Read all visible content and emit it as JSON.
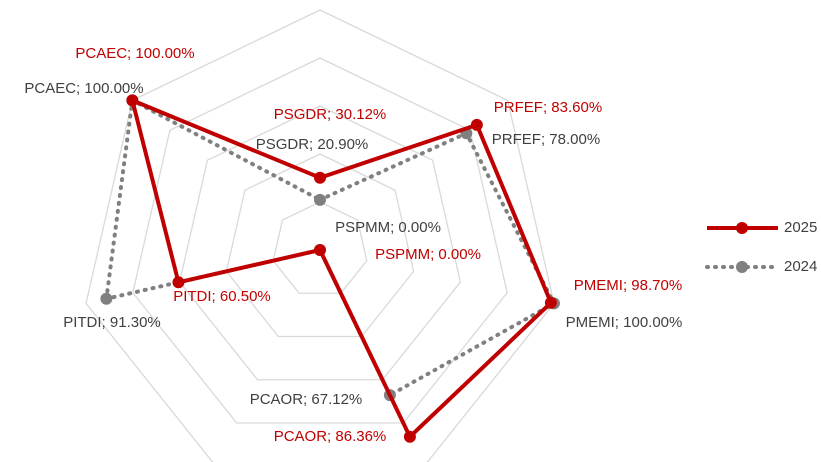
{
  "chart_data": {
    "type": "radar",
    "categories": [
      "PSGDR",
      "PRFEF",
      "PMEMI",
      "PCAOR",
      "PSPMM",
      "PITDI",
      "PCAEC"
    ],
    "ylim": [
      0,
      100
    ],
    "yticks": [
      0,
      20,
      40,
      60,
      80,
      100
    ],
    "grid": true,
    "legend": "right",
    "series": [
      {
        "name": "2025",
        "color": "#c00000",
        "style": "solid",
        "values": [
          30.12,
          83.6,
          98.7,
          86.36,
          0,
          60.5,
          100
        ],
        "value_labels": [
          "PSGDR; 30.12%",
          "PRFEF; 83.60%",
          "PMEMI; 98.70%",
          "PCAOR; 86.36%",
          "PSPMM; 0.00%",
          "PITDI; 60.50%",
          "PCAEC; 100.00%"
        ]
      },
      {
        "name": "2024",
        "color": "#808080",
        "style": "dotted",
        "values": [
          20.9,
          78,
          100,
          67.12,
          0,
          91.3,
          100
        ],
        "value_labels": [
          "PSGDR; 20.90%",
          "PRFEF; 78.00%",
          "PMEMI; 100.00%",
          "PCAOR; 67.12%",
          "PSPMM; 0.00%",
          "PITDI; 91.30%",
          "PCAEC; 100.00%"
        ]
      }
    ]
  }
}
